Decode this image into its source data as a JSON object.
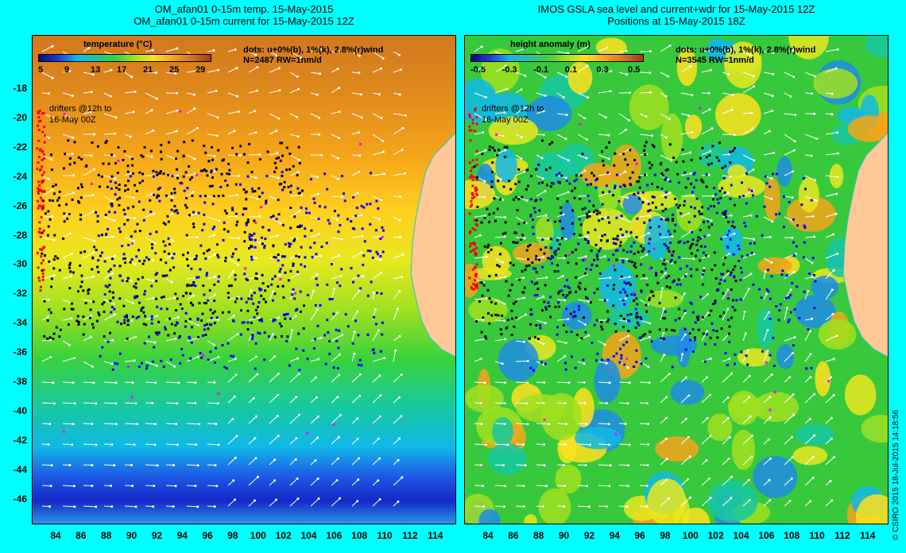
{
  "left_panel": {
    "title_line1": "OM_afan01 0-15m temp. 15-May-2015",
    "title_line2": "OM_afan01 0-15m current for 15-May-2015 12Z",
    "colorbar_title": "temperature (°C)",
    "colorbar_ticks": [
      "5",
      "9",
      "13",
      "17",
      "21",
      "25",
      "29"
    ],
    "dots_legend": "dots: u+0%(b), 1%(k), 2.8%(r)wind",
    "stats": "N=2487 RW=1nm/d",
    "drifter_note_line1": "drifters @12h to",
    "drifter_note_line2": "16-May 00Z"
  },
  "right_panel": {
    "title_line1": "IMOS GSLA sea level and current+wdr for 15-May-2015 12Z",
    "title_line2": "Positions at 15-May-2015 18Z",
    "colorbar_title": "height anomaly (m)",
    "colorbar_ticks": [
      "-0.5",
      "-0.3",
      "-0.1",
      "0.1",
      "0.3",
      "0.5"
    ],
    "dots_legend": "dots: u+0%(b), 1%(k), 2.8%(r)wind",
    "stats": "N=3545 RW=1nm/d",
    "drifter_note_line1": "drifters @12h to",
    "drifter_note_line2": "16-May 00Z"
  },
  "axes": {
    "lat_ticks": [
      "-18",
      "-20",
      "-22",
      "-24",
      "-26",
      "-28",
      "-30",
      "-32",
      "-34",
      "-36",
      "-38",
      "-40",
      "-42",
      "-44",
      "-46"
    ],
    "lon_ticks": [
      "84",
      "86",
      "88",
      "90",
      "92",
      "94",
      "96",
      "98",
      "100",
      "102",
      "104",
      "106",
      "108",
      "110",
      "112",
      "114"
    ]
  },
  "credit": "© CSIRO 2015   18-Jul-2015 14:18:56",
  "colors": {
    "background": "#00ffff",
    "land": "#ffc896",
    "drifter_blue": "#0000ff",
    "drifter_black": "#000000",
    "drifter_red": "#ff0000"
  }
}
